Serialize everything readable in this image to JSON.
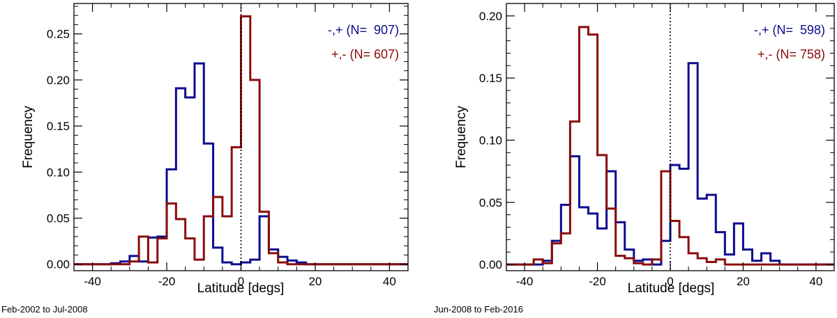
{
  "chart_data": [
    {
      "type": "histogram",
      "caption": "Feb-2002 to Jul-2008",
      "xlabel": "Latitude [degs]",
      "ylabel": "Frequency",
      "xlim": [
        -45,
        45
      ],
      "ylim": [
        -0.007,
        0.283
      ],
      "xticks": [
        -40,
        -20,
        0,
        20,
        40
      ],
      "xtick_labels": [
        "-40",
        "-20",
        "0",
        "20",
        "40"
      ],
      "yticks": [
        0,
        0.05,
        0.1,
        0.15,
        0.2,
        0.25
      ],
      "ytick_labels": [
        "0.00",
        "0.05",
        "0.10",
        "0.15",
        "0.20",
        "0.25"
      ],
      "bin_edges": [
        -45,
        -42.5,
        -40,
        -37.5,
        -35,
        -32.5,
        -30,
        -27.5,
        -25,
        -22.5,
        -20,
        -17.5,
        -15,
        -12.5,
        -10,
        -7.5,
        -5,
        -2.5,
        0,
        2.5,
        5,
        7.5,
        10,
        12.5,
        15,
        17.5,
        20,
        22.5,
        25,
        27.5,
        30,
        32.5,
        35,
        37.5,
        40,
        42.5,
        45
      ],
      "zero_line_x": 0,
      "series": [
        {
          "name": "-,+",
          "legend": "-,+ (N=  907)",
          "color": "#0b0b8f",
          "values": [
            0,
            0,
            0,
            0,
            0.001,
            0.003,
            0.009,
            0.003,
            0.029,
            0.03,
            0.103,
            0.191,
            0.181,
            0.218,
            0.131,
            0.018,
            0.002,
            0,
            0.002,
            0.005,
            0.052,
            0.016,
            0.008,
            0.004,
            0.002,
            0,
            0,
            0,
            0,
            0,
            0,
            0,
            0,
            0,
            0,
            0
          ]
        },
        {
          "name": "+,-",
          "legend": "+,- (N= 607)",
          "color": "#8b0b0b",
          "values": [
            0,
            0,
            0,
            0,
            0,
            0,
            0.003,
            0.03,
            0.002,
            0.028,
            0.066,
            0.049,
            0.028,
            0.005,
            0.052,
            0.073,
            0.052,
            0.127,
            0.269,
            0.2,
            0.057,
            0.012,
            0.002,
            0,
            0,
            0,
            0,
            0,
            0,
            0,
            0,
            0,
            0,
            0,
            0,
            0
          ]
        }
      ]
    },
    {
      "type": "histogram",
      "caption": "Jun-2008 to Feb-2016",
      "xlabel": "Latitude [degs]",
      "ylabel": "Frequency",
      "xlim": [
        -45,
        45
      ],
      "ylim": [
        -0.005,
        0.21
      ],
      "xticks": [
        -40,
        -20,
        0,
        20,
        40
      ],
      "xtick_labels": [
        "-40",
        "-20",
        "0",
        "20",
        "40"
      ],
      "yticks": [
        0,
        0.05,
        0.1,
        0.15,
        0.2
      ],
      "ytick_labels": [
        "0.00",
        "0.05",
        "0.10",
        "0.15",
        "0.20"
      ],
      "bin_edges": [
        -45,
        -42.5,
        -40,
        -37.5,
        -35,
        -32.5,
        -30,
        -27.5,
        -25,
        -22.5,
        -20,
        -17.5,
        -15,
        -12.5,
        -10,
        -7.5,
        -5,
        -2.5,
        0,
        2.5,
        5,
        7.5,
        10,
        12.5,
        15,
        17.5,
        20,
        22.5,
        25,
        27.5,
        30,
        32.5,
        35,
        37.5,
        40,
        42.5,
        45
      ],
      "zero_line_x": 0,
      "series": [
        {
          "name": "-,+",
          "legend": "-,+ (N=  598)",
          "color": "#0b0b8f",
          "values": [
            0,
            0,
            0,
            0,
            0.003,
            0.019,
            0.048,
            0.087,
            0.046,
            0.041,
            0.029,
            0.075,
            0.034,
            0.012,
            0.003,
            0.004,
            0,
            0.019,
            0.08,
            0.077,
            0.162,
            0.053,
            0.056,
            0.026,
            0.008,
            0.033,
            0.012,
            0.003,
            0.009,
            0.003,
            0,
            0,
            0,
            0,
            0,
            0
          ]
        },
        {
          "name": "+,-",
          "legend": "+,- (N= 758)",
          "color": "#8b0b0b",
          "values": [
            0,
            0,
            0,
            0.004,
            0.001,
            0.017,
            0.025,
            0.115,
            0.191,
            0.185,
            0.088,
            0.045,
            0.007,
            0.005,
            0.001,
            0,
            0.004,
            0.075,
            0.035,
            0.022,
            0.009,
            0.005,
            0.002,
            0.004,
            0,
            0,
            0,
            0,
            0,
            0,
            0,
            0,
            0,
            0,
            0,
            0
          ]
        }
      ]
    }
  ]
}
